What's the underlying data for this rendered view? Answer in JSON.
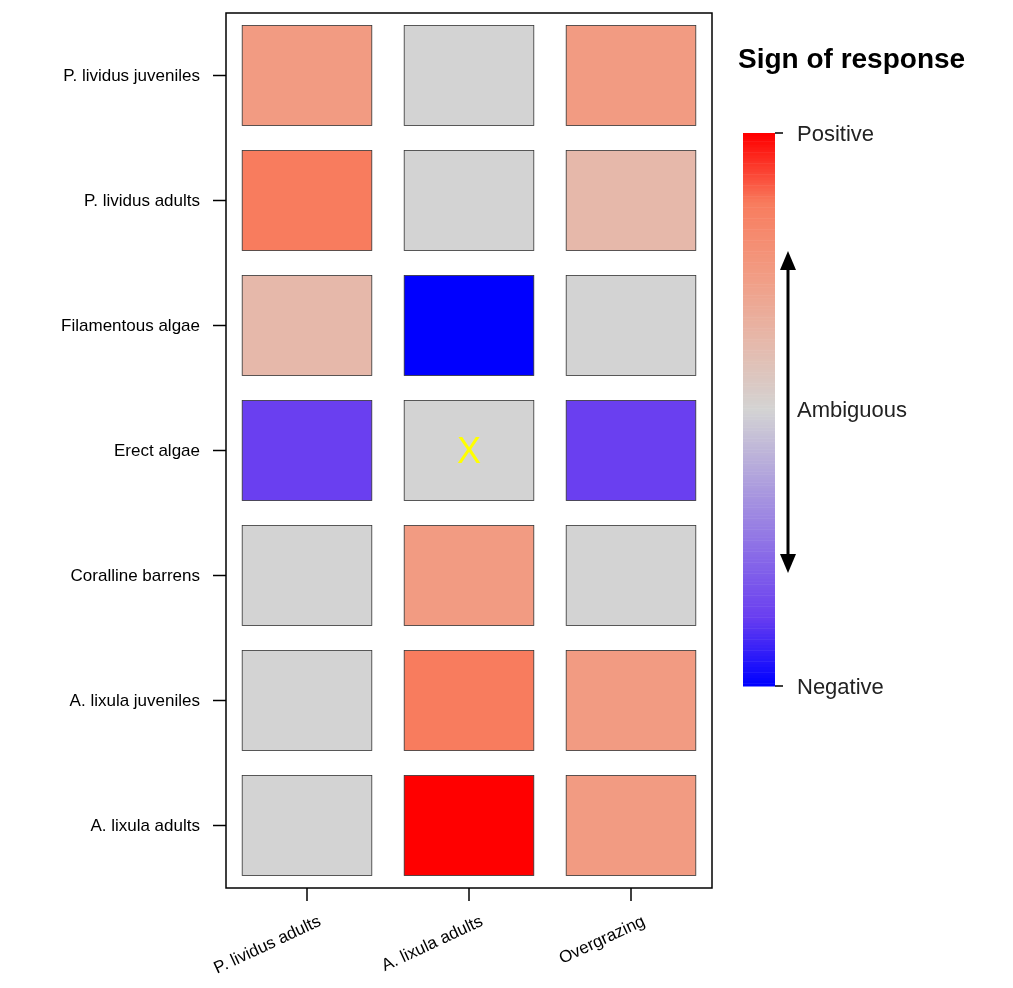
{
  "chart_data": {
    "type": "heatmap",
    "clabel": "Sign of response",
    "categories": [
      "P. lividus adults",
      "A. lixula adults",
      "Overgrazing"
    ],
    "y_categories": [
      "P. lividus juveniles",
      "P. lividus adults",
      "Filamentous algae",
      "Erect algae",
      "Coralline barrens",
      "A. lixula juveniles",
      "A. lixula adults"
    ],
    "cells": [
      [
        0.5,
        0,
        0.5
      ],
      [
        0.75,
        0,
        0.25
      ],
      [
        0.25,
        -1,
        0
      ],
      [
        -0.75,
        0,
        -0.75
      ],
      [
        0,
        0.5,
        0
      ],
      [
        0,
        0.75,
        0.5
      ],
      [
        0,
        1,
        0.5
      ]
    ],
    "cell_labels": [
      [
        null,
        null,
        null
      ],
      [
        null,
        null,
        null
      ],
      [
        null,
        null,
        null
      ],
      [
        null,
        "X",
        null
      ],
      [
        null,
        null,
        null
      ],
      [
        null,
        null,
        null
      ],
      [
        null,
        null,
        null
      ]
    ],
    "clim": [
      -1,
      1
    ],
    "cticks": [
      {
        "value": 1,
        "label": "Positive"
      },
      {
        "value": -1,
        "label": "Negative"
      }
    ],
    "annotations": [
      "Ambiguous"
    ]
  }
}
